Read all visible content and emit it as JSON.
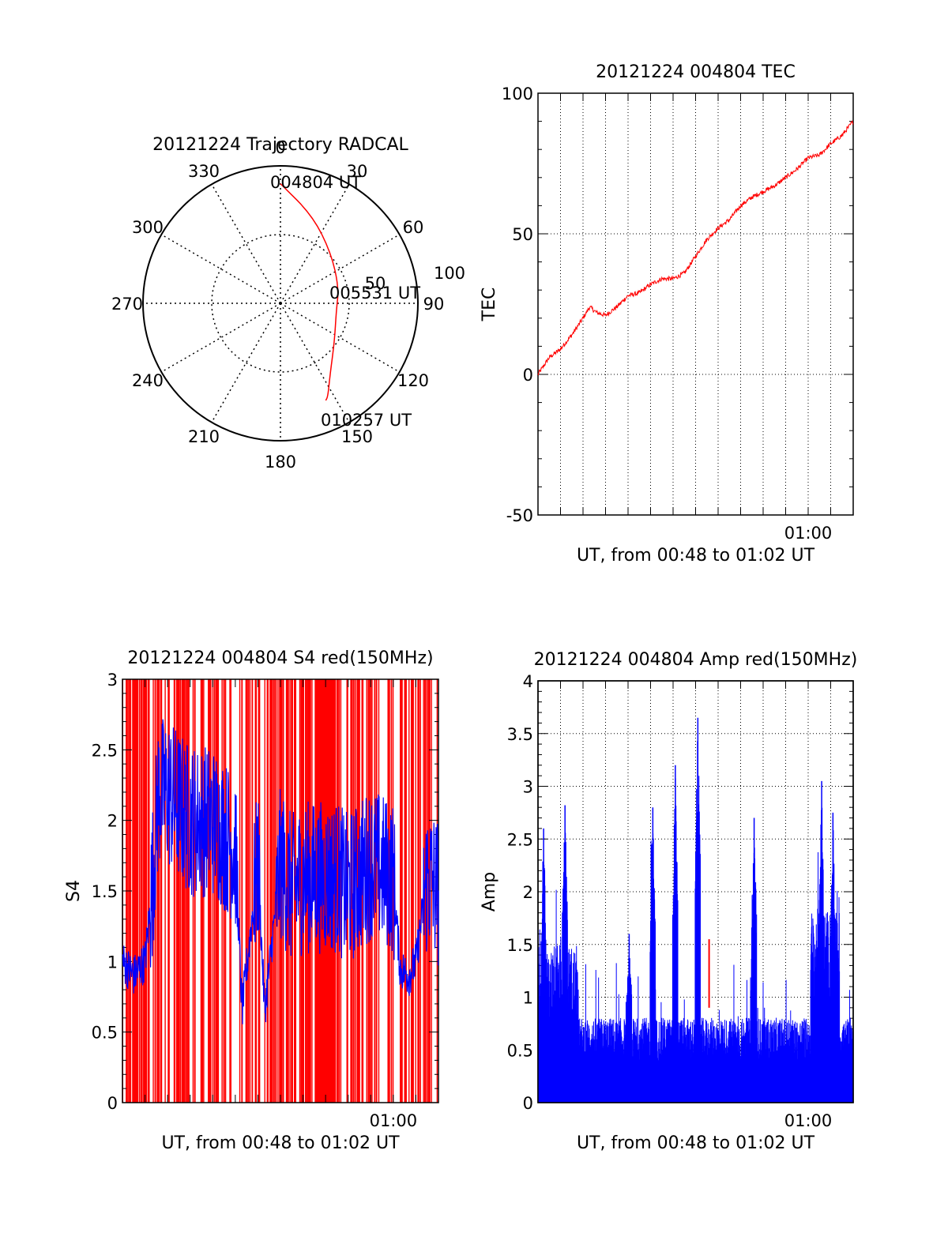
{
  "chart_data": [
    {
      "type": "polar",
      "title": "20121224 Trajectory RADCAL",
      "angle_labels": [
        "0",
        "30",
        "60",
        "90",
        "120",
        "150",
        "180",
        "210",
        "240",
        "270",
        "300",
        "330"
      ],
      "radial_labels": [
        "50",
        "100"
      ],
      "rlim": [
        0,
        100
      ],
      "grid": true,
      "series": [
        {
          "color": "#ff0000",
          "points": [
            {
              "az": 0,
              "r": 87
            },
            {
              "az": 20,
              "r": 68
            },
            {
              "az": 45,
              "r": 52
            },
            {
              "az": 75,
              "r": 44
            },
            {
              "az": 98,
              "r": 41
            },
            {
              "az": 125,
              "r": 48
            },
            {
              "az": 145,
              "r": 63
            },
            {
              "az": 153,
              "r": 76
            },
            {
              "az": 155,
              "r": 78
            }
          ]
        }
      ],
      "annotations": [
        "004804 UT",
        "005531 UT",
        "010257 UT"
      ]
    },
    {
      "type": "line",
      "title": "20121224 004804 TEC",
      "xlabel": "UT, from 00:48 to 01:02 UT",
      "ylabel": "TEC",
      "xlim": [
        0,
        14
      ],
      "ylim": [
        -50,
        100
      ],
      "ytick_labels": [
        "-50",
        "0",
        "50",
        "100"
      ],
      "xtick_labels": [
        {
          "x": 12,
          "label": "01:00"
        }
      ],
      "grid": true,
      "series": [
        {
          "color": "#ff0000",
          "x": [
            0,
            0.5,
            1.0,
            1.5,
            2.0,
            2.3,
            2.6,
            3.0,
            3.5,
            4.0,
            4.5,
            5.0,
            5.5,
            6.0,
            6.5,
            7.0,
            7.5,
            8.0,
            8.5,
            9.0,
            9.5,
            10.0,
            10.5,
            11.0,
            11.5,
            12.0,
            12.5,
            13.0,
            13.5,
            14.0
          ],
          "y": [
            0,
            6,
            9,
            14,
            20,
            24,
            22,
            21,
            24,
            28,
            29,
            32,
            34,
            34,
            36,
            42,
            48,
            52,
            55,
            60,
            63,
            65,
            67,
            70,
            73,
            77,
            78,
            82,
            85,
            90
          ]
        }
      ]
    },
    {
      "type": "line",
      "title": "20121224 004804 S4 red(150MHz)",
      "xlabel": "UT, from 00:48 to 01:02 UT",
      "ylabel": "S4",
      "xlim": [
        0,
        14
      ],
      "ylim": [
        0,
        3
      ],
      "ytick_labels": [
        "0",
        "0.5",
        "1",
        "1.5",
        "2",
        "2.5",
        "3"
      ],
      "xtick_labels": [
        {
          "x": 12,
          "label": "01:00"
        }
      ],
      "series": [
        {
          "color": "#ff0000",
          "style": "dense-vertical-lines",
          "x": [
            0,
            14
          ],
          "y": [
            0,
            3
          ]
        },
        {
          "color": "#0000ff",
          "style": "noisy-line",
          "x": [
            0,
            0.5,
            1.0,
            1.3,
            1.6,
            2.0,
            3.0,
            4.0,
            5.0,
            5.3,
            6.0,
            6.3,
            7.0,
            7.5,
            8.0,
            9.0,
            9.5,
            10.0,
            11.0,
            12.0,
            12.3,
            12.7,
            13.0,
            13.5,
            14.0
          ],
          "y": [
            1.0,
            0.9,
            1.0,
            1.5,
            2.2,
            2.2,
            2.0,
            2.0,
            1.8,
            0.65,
            1.7,
            0.65,
            1.7,
            1.5,
            1.6,
            1.6,
            1.6,
            1.5,
            1.7,
            1.6,
            0.95,
            0.9,
            1.0,
            1.6,
            1.5
          ]
        }
      ]
    },
    {
      "type": "bar",
      "title": "20121224 004804 Amp red(150MHz)",
      "xlabel": "UT, from 00:48 to 01:02 UT",
      "ylabel": "Amp",
      "xlim": [
        0,
        14
      ],
      "ylim": [
        0,
        4
      ],
      "ytick_labels": [
        "0",
        "0.5",
        "1",
        "1.5",
        "2",
        "2.5",
        "3",
        "3.5",
        "4"
      ],
      "xtick_labels": [
        {
          "x": 12,
          "label": "01:00"
        }
      ],
      "grid": true,
      "series": [
        {
          "color": "#0000ff",
          "style": "dense-vertical-lines",
          "peaks": [
            {
              "x": 0.25,
              "y": 2.6
            },
            {
              "x": 1.2,
              "y": 2.82
            },
            {
              "x": 4.05,
              "y": 1.6
            },
            {
              "x": 5.1,
              "y": 2.8
            },
            {
              "x": 6.1,
              "y": 3.2
            },
            {
              "x": 7.1,
              "y": 3.65
            },
            {
              "x": 9.6,
              "y": 2.7
            },
            {
              "x": 12.6,
              "y": 3.05
            },
            {
              "x": 13.1,
              "y": 2.75
            }
          ],
          "baseline": 0.7
        },
        {
          "color": "#ff0000",
          "peaks": [
            {
              "x": 7.6,
              "y": 1.55
            }
          ]
        }
      ]
    }
  ]
}
